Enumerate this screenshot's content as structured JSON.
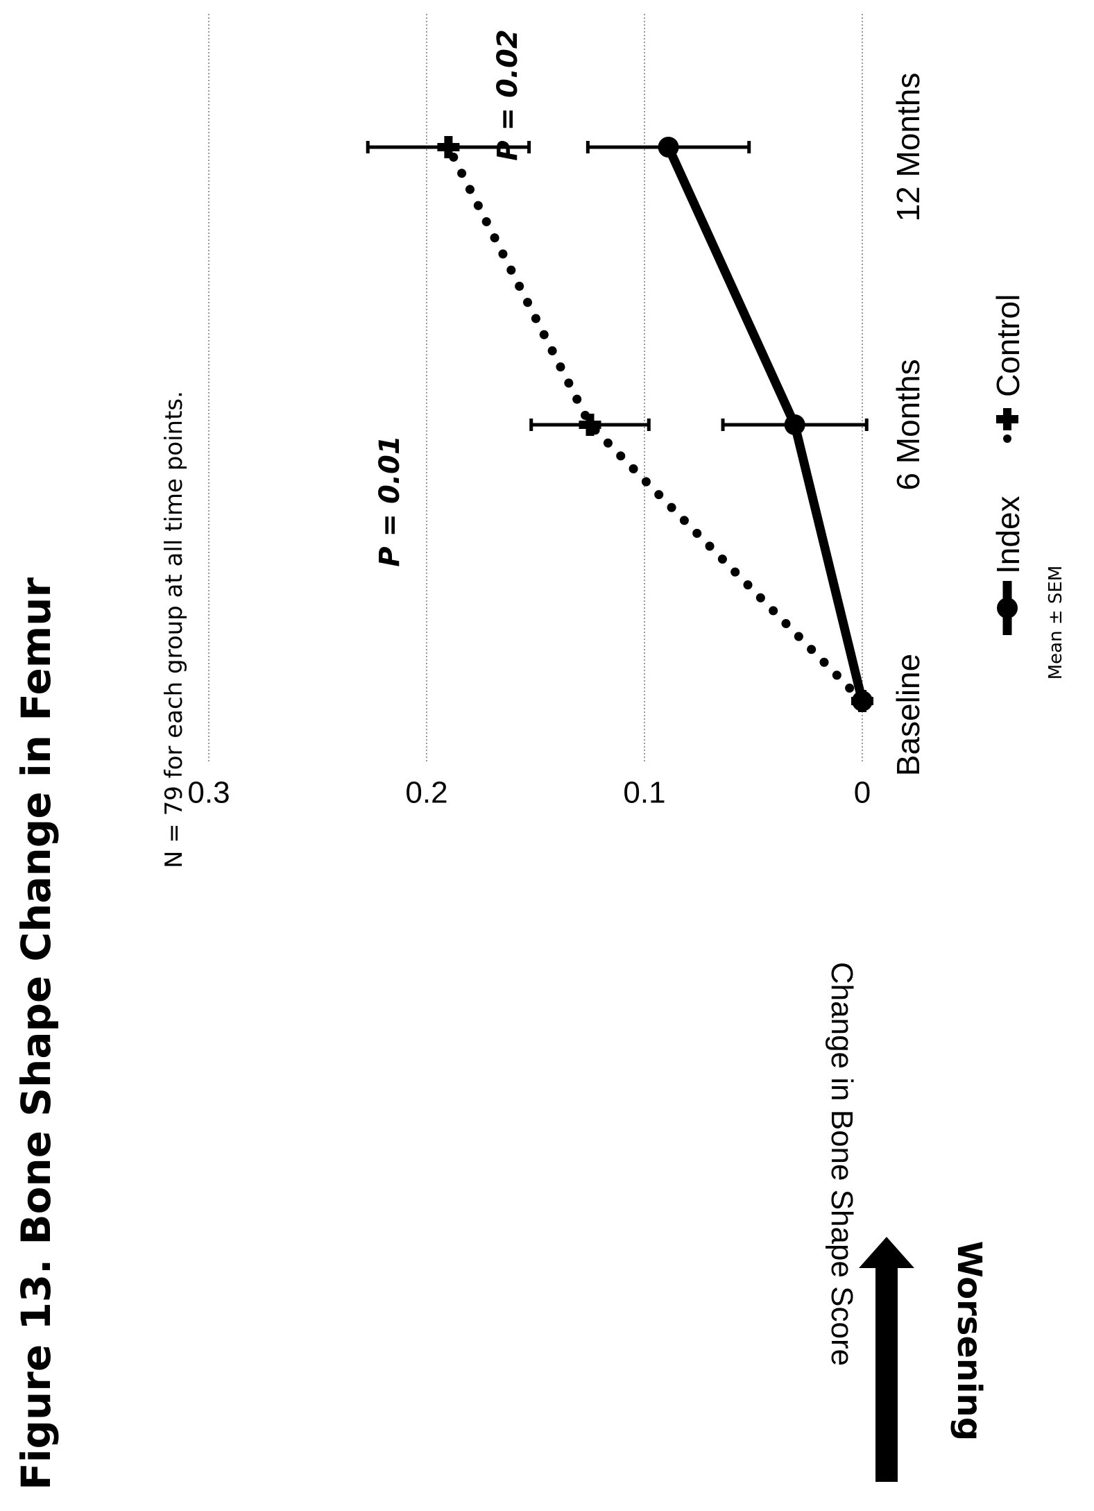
{
  "figure": {
    "title": "Figure 13.  Bone Shape Change in Femur",
    "note": "N = 79 for each group at all time points.",
    "worsening_label": "Worsening",
    "footnote": "Mean ± SEM"
  },
  "chart_data": {
    "type": "line",
    "orientation": "rotated 90° counter-clockwise on the page",
    "title": "Figure 13.  Bone Shape Change in Femur",
    "xlabel": "",
    "ylabel": "Change in Bone Shape Score",
    "categories": [
      "Baseline",
      "6 Months",
      "12 Months"
    ],
    "ylim": [
      0,
      0.3
    ],
    "yticks": [
      0,
      0.1,
      0.2,
      0.3
    ],
    "ytick_labels": [
      "0",
      "0.1",
      "0.2",
      "0.3"
    ],
    "grid": "horizontal dotted",
    "legend_position": "bottom",
    "series": [
      {
        "name": "Index",
        "style": "solid thick line, circle markers",
        "color": "#000000",
        "values": [
          0,
          0.031,
          0.089
        ],
        "sem": [
          0,
          0.033,
          0.037
        ]
      },
      {
        "name": "Control",
        "style": "dotted line, cross markers",
        "color": "#000000",
        "values": [
          0,
          0.125,
          0.19
        ],
        "sem": [
          0,
          0.027,
          0.037
        ]
      }
    ],
    "annotations": [
      {
        "text": "P = 0.01",
        "category": "6 Months"
      },
      {
        "text": "P = 0.02",
        "category": "12 Months"
      }
    ]
  }
}
